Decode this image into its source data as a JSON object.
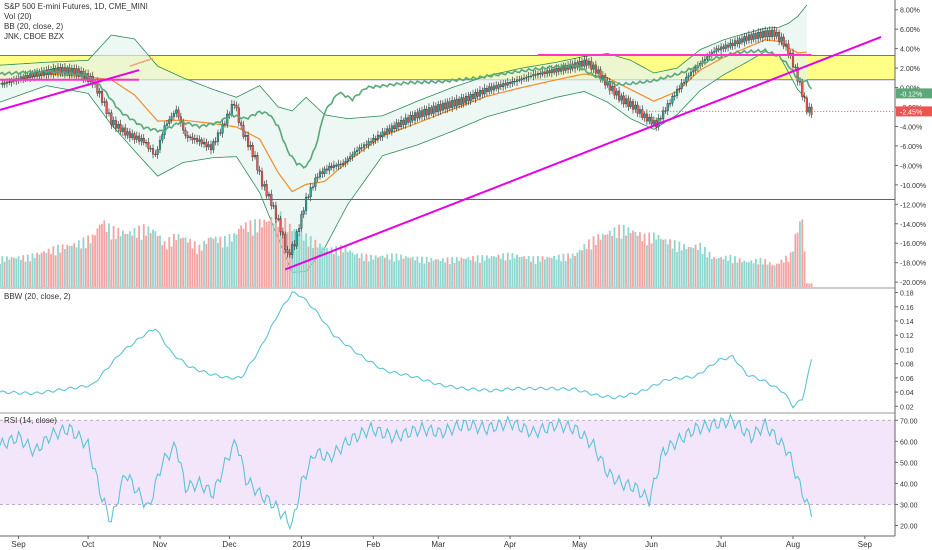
{
  "legend": {
    "main_title": "S&P 500 E-mini Futures, 1D, CME_MINI",
    "vol": "Vol (20)",
    "bb": "BB (20, close, 2)",
    "jnk": "JNK, CBOE BZX",
    "bbw": "BBW (20, close, 2)",
    "rsi": "RSI (14, close)"
  },
  "colors": {
    "up": "#26a69a",
    "down": "#ef5350",
    "vol_up": "#8fd6cf",
    "vol_down": "#f4a3a3",
    "bb_band": "#2e8b57",
    "bb_fill": "#e6f4ee",
    "basis": "#f28c28",
    "jnk": "#5aa77a",
    "bbw": "#5cc3d6",
    "rsi": "#5cc3d6",
    "rsi_fill": "#f3e6fb",
    "highlight": "#ffff66",
    "trend": "#e600e6",
    "support": "#3366dd",
    "red_dotted": "#e05050",
    "resist": "#ff33cc"
  },
  "chart_data": [
    {
      "panel": "price",
      "type": "candlestick",
      "y_unit": "%",
      "ylim": [
        -20.5,
        9
      ],
      "y_ticks": [
        "8.00%",
        "6.00%",
        "4.00%",
        "2.00%",
        "0.00%",
        "-2.00%",
        "-4.00%",
        "-6.00%",
        "-8.00%",
        "-10.00%",
        "-12.00%",
        "-14.00%",
        "-16.00%",
        "-18.00%",
        "-20.00%"
      ],
      "y_tick_values": [
        8,
        6,
        4,
        2,
        0,
        -2,
        -4,
        -6,
        -8,
        -10,
        -12,
        -14,
        -16,
        -18,
        -20
      ],
      "x_ticks": [
        "Sep",
        "Oct",
        "Nov",
        "Dec",
        "2019",
        "Feb",
        "Mar",
        "Apr",
        "May",
        "Jun",
        "Jul",
        "Aug",
        "Sep"
      ],
      "x_tick_days": [
        8,
        38,
        69,
        99,
        130,
        161,
        189,
        220,
        250,
        281,
        311,
        342,
        373
      ],
      "last_day": 350,
      "close_path": [
        [
          0,
          0.3
        ],
        [
          12,
          1.2
        ],
        [
          25,
          1.8
        ],
        [
          33,
          1.6
        ],
        [
          40,
          0.7
        ],
        [
          44,
          -1.2
        ],
        [
          48,
          -3.5
        ],
        [
          55,
          -4.8
        ],
        [
          62,
          -5.5
        ],
        [
          67,
          -7.0
        ],
        [
          71,
          -4.0
        ],
        [
          76,
          -2.3
        ],
        [
          80,
          -5.0
        ],
        [
          86,
          -5.5
        ],
        [
          91,
          -6.2
        ],
        [
          96,
          -4.0
        ],
        [
          101,
          -1.5
        ],
        [
          104,
          -4.2
        ],
        [
          110,
          -7.3
        ],
        [
          113,
          -9.8
        ],
        [
          117,
          -11.8
        ],
        [
          121,
          -14.5
        ],
        [
          124,
          -17.3
        ],
        [
          127,
          -16.0
        ],
        [
          132,
          -11.5
        ],
        [
          137,
          -9.0
        ],
        [
          142,
          -8.2
        ],
        [
          148,
          -7.8
        ],
        [
          154,
          -6.4
        ],
        [
          160,
          -5.5
        ],
        [
          170,
          -4.0
        ],
        [
          180,
          -2.8
        ],
        [
          190,
          -2.0
        ],
        [
          200,
          -1.3
        ],
        [
          210,
          -0.2
        ],
        [
          220,
          0.5
        ],
        [
          230,
          1.3
        ],
        [
          240,
          1.8
        ],
        [
          248,
          2.3
        ],
        [
          253,
          2.6
        ],
        [
          257,
          1.8
        ],
        [
          262,
          0.3
        ],
        [
          268,
          -1.2
        ],
        [
          273,
          -1.9
        ],
        [
          278,
          -3.0
        ],
        [
          283,
          -3.8
        ],
        [
          287,
          -2.2
        ],
        [
          292,
          -0.3
        ],
        [
          297,
          1.3
        ],
        [
          302,
          2.5
        ],
        [
          308,
          3.8
        ],
        [
          315,
          4.4
        ],
        [
          322,
          5.1
        ],
        [
          329,
          5.5
        ],
        [
          334,
          5.6
        ],
        [
          338,
          4.6
        ],
        [
          341,
          3.2
        ],
        [
          344,
          1.0
        ],
        [
          346,
          -0.6
        ],
        [
          348,
          -2.2
        ],
        [
          350,
          -2.45
        ]
      ],
      "bands": [
        [
          0,
          2.3,
          -1.5
        ],
        [
          20,
          2.6,
          0.2
        ],
        [
          38,
          2.8,
          -0.6
        ],
        [
          48,
          5.4,
          -3.8
        ],
        [
          58,
          5.0,
          -6.5
        ],
        [
          68,
          2.2,
          -9.1
        ],
        [
          79,
          1.0,
          -7.7
        ],
        [
          92,
          -0.2,
          -7.2
        ],
        [
          102,
          -1.0,
          -7.1
        ],
        [
          112,
          0.2,
          -10.8
        ],
        [
          120,
          -2.0,
          -15.5
        ],
        [
          126,
          -2.4,
          -19.0
        ],
        [
          132,
          -1.0,
          -18.9
        ],
        [
          140,
          -2.8,
          -16.5
        ],
        [
          150,
          -3.2,
          -12.0
        ],
        [
          165,
          -2.9,
          -7.0
        ],
        [
          180,
          -1.4,
          -5.9
        ],
        [
          195,
          0.0,
          -4.5
        ],
        [
          210,
          1.2,
          -3.0
        ],
        [
          225,
          2.0,
          -2.0
        ],
        [
          240,
          2.6,
          -1.0
        ],
        [
          252,
          3.2,
          -0.4
        ],
        [
          262,
          3.5,
          -1.5
        ],
        [
          272,
          2.8,
          -3.2
        ],
        [
          282,
          1.5,
          -4.3
        ],
        [
          292,
          2.0,
          -2.8
        ],
        [
          302,
          3.9,
          -0.3
        ],
        [
          312,
          4.9,
          1.3
        ],
        [
          322,
          5.6,
          2.6
        ],
        [
          330,
          6.1,
          3.7
        ],
        [
          336,
          6.2,
          3.3
        ],
        [
          340,
          6.6,
          1.6
        ],
        [
          344,
          7.3,
          -0.2
        ],
        [
          348,
          8.5,
          -1.2
        ]
      ],
      "jnk_path": [
        [
          0,
          1.4
        ],
        [
          20,
          1.7
        ],
        [
          38,
          1.2
        ],
        [
          44,
          0.0
        ],
        [
          52,
          -2.5
        ],
        [
          62,
          -4.1
        ],
        [
          70,
          -4.5
        ],
        [
          78,
          -3.5
        ],
        [
          86,
          -4.0
        ],
        [
          94,
          -3.6
        ],
        [
          100,
          -2.8
        ],
        [
          106,
          -3.2
        ],
        [
          112,
          -2.5
        ],
        [
          116,
          -2.7
        ],
        [
          120,
          -4.0
        ],
        [
          124,
          -6.5
        ],
        [
          128,
          -7.8
        ],
        [
          132,
          -8.2
        ],
        [
          136,
          -6.2
        ],
        [
          140,
          -2.5
        ],
        [
          146,
          -0.5
        ],
        [
          152,
          -1.2
        ],
        [
          158,
          0.0
        ],
        [
          166,
          0.2
        ],
        [
          176,
          0.5
        ],
        [
          190,
          0.6
        ],
        [
          206,
          1.0
        ],
        [
          222,
          1.6
        ],
        [
          238,
          2.1
        ],
        [
          248,
          2.3
        ],
        [
          258,
          1.0
        ],
        [
          266,
          0.3
        ],
        [
          272,
          0.4
        ],
        [
          282,
          0.7
        ],
        [
          294,
          1.5
        ],
        [
          308,
          3.0
        ],
        [
          318,
          3.6
        ],
        [
          330,
          3.8
        ],
        [
          336,
          3.2
        ],
        [
          340,
          2.3
        ],
        [
          344,
          0.9
        ],
        [
          348,
          0.6
        ],
        [
          350,
          -0.12
        ]
      ],
      "jnk_last": "-0.12%",
      "last_label": "-2.45%",
      "volume_max": 100,
      "volume": [
        [
          0,
          40,
          1
        ],
        [
          12,
          42,
          1
        ],
        [
          25,
          55,
          0
        ],
        [
          33,
          60,
          1
        ],
        [
          40,
          70,
          0
        ],
        [
          44,
          92,
          0
        ],
        [
          48,
          80,
          0
        ],
        [
          55,
          75,
          1
        ],
        [
          62,
          82,
          0
        ],
        [
          67,
          78,
          1
        ],
        [
          71,
          60,
          0
        ],
        [
          76,
          72,
          0
        ],
        [
          80,
          68,
          0
        ],
        [
          86,
          55,
          0
        ],
        [
          91,
          70,
          0
        ],
        [
          96,
          65,
          1
        ],
        [
          101,
          72,
          1
        ],
        [
          104,
          85,
          0
        ],
        [
          110,
          88,
          0
        ],
        [
          113,
          90,
          0
        ],
        [
          117,
          95,
          0
        ],
        [
          121,
          98,
          0
        ],
        [
          124,
          86,
          0
        ],
        [
          127,
          80,
          1
        ],
        [
          132,
          70,
          1
        ],
        [
          137,
          60,
          1
        ],
        [
          142,
          52,
          1
        ],
        [
          148,
          55,
          1
        ],
        [
          154,
          45,
          1
        ],
        [
          160,
          42,
          1
        ],
        [
          170,
          44,
          1
        ],
        [
          180,
          40,
          1
        ],
        [
          190,
          38,
          1
        ],
        [
          200,
          40,
          1
        ],
        [
          210,
          42,
          1
        ],
        [
          220,
          45,
          1
        ],
        [
          230,
          40,
          1
        ],
        [
          240,
          42,
          1
        ],
        [
          248,
          45,
          1
        ],
        [
          253,
          60,
          0
        ],
        [
          257,
          68,
          0
        ],
        [
          262,
          75,
          0
        ],
        [
          268,
          82,
          1
        ],
        [
          273,
          78,
          0
        ],
        [
          278,
          70,
          0
        ],
        [
          283,
          72,
          1
        ],
        [
          287,
          65,
          1
        ],
        [
          292,
          60,
          1
        ],
        [
          297,
          55,
          1
        ],
        [
          302,
          58,
          1
        ],
        [
          308,
          40,
          1
        ],
        [
          315,
          42,
          1
        ],
        [
          322,
          35,
          1
        ],
        [
          329,
          38,
          1
        ],
        [
          334,
          30,
          0
        ],
        [
          341,
          45,
          0
        ],
        [
          344,
          82,
          0
        ],
        [
          346,
          96,
          0
        ],
        [
          348,
          5,
          0
        ]
      ],
      "highlight_zone": [
        0.8,
        3.3
      ],
      "resistance_level": 3.3,
      "support_level": -11.5,
      "trend_lines": [
        {
          "from": [
            0,
            -2.3
          ],
          "to": [
            60,
            1.8
          ]
        },
        {
          "from": [
            123,
            -18.7
          ],
          "to": [
            380,
            5.2
          ]
        }
      ]
    },
    {
      "panel": "bbw",
      "type": "line",
      "ylim": [
        0.012,
        0.185
      ],
      "y_ticks": [
        "0.18",
        "0.16",
        "0.14",
        "0.12",
        "0.10",
        "0.08",
        "0.06",
        "0.04",
        "0.02"
      ],
      "y_tick_values": [
        0.18,
        0.16,
        0.14,
        0.12,
        0.1,
        0.08,
        0.06,
        0.04,
        0.02
      ],
      "points": [
        [
          0,
          0.04
        ],
        [
          15,
          0.038
        ],
        [
          30,
          0.045
        ],
        [
          40,
          0.05
        ],
        [
          52,
          0.095
        ],
        [
          62,
          0.12
        ],
        [
          67,
          0.13
        ],
        [
          74,
          0.095
        ],
        [
          82,
          0.075
        ],
        [
          90,
          0.066
        ],
        [
          98,
          0.06
        ],
        [
          104,
          0.06
        ],
        [
          112,
          0.1
        ],
        [
          120,
          0.15
        ],
        [
          126,
          0.18
        ],
        [
          130,
          0.175
        ],
        [
          136,
          0.155
        ],
        [
          144,
          0.12
        ],
        [
          156,
          0.09
        ],
        [
          166,
          0.07
        ],
        [
          178,
          0.062
        ],
        [
          190,
          0.05
        ],
        [
          200,
          0.045
        ],
        [
          212,
          0.042
        ],
        [
          222,
          0.045
        ],
        [
          236,
          0.045
        ],
        [
          248,
          0.044
        ],
        [
          258,
          0.035
        ],
        [
          266,
          0.032
        ],
        [
          276,
          0.04
        ],
        [
          288,
          0.058
        ],
        [
          300,
          0.062
        ],
        [
          310,
          0.085
        ],
        [
          316,
          0.09
        ],
        [
          322,
          0.065
        ],
        [
          330,
          0.055
        ],
        [
          338,
          0.04
        ],
        [
          342,
          0.02
        ],
        [
          346,
          0.03
        ],
        [
          350,
          0.085
        ]
      ]
    },
    {
      "panel": "rsi",
      "type": "line",
      "ylim": [
        15,
        73
      ],
      "band": [
        30,
        70
      ],
      "y_ticks": [
        "70.00",
        "60.00",
        "50.00",
        "40.00",
        "30.00",
        "20.00"
      ],
      "y_tick_values": [
        70,
        60,
        50,
        40,
        30,
        20
      ],
      "points": [
        [
          0,
          58
        ],
        [
          8,
          62
        ],
        [
          15,
          55
        ],
        [
          22,
          63
        ],
        [
          30,
          66
        ],
        [
          38,
          58
        ],
        [
          44,
          33
        ],
        [
          48,
          22
        ],
        [
          54,
          45
        ],
        [
          60,
          35
        ],
        [
          64,
          28
        ],
        [
          70,
          50
        ],
        [
          76,
          58
        ],
        [
          80,
          38
        ],
        [
          86,
          40
        ],
        [
          92,
          35
        ],
        [
          98,
          52
        ],
        [
          102,
          60
        ],
        [
          106,
          42
        ],
        [
          112,
          35
        ],
        [
          118,
          30
        ],
        [
          122,
          25
        ],
        [
          126,
          20
        ],
        [
          130,
          40
        ],
        [
          136,
          55
        ],
        [
          142,
          52
        ],
        [
          150,
          60
        ],
        [
          160,
          66
        ],
        [
          170,
          62
        ],
        [
          182,
          66
        ],
        [
          190,
          64
        ],
        [
          200,
          68
        ],
        [
          210,
          66
        ],
        [
          220,
          69
        ],
        [
          230,
          64
        ],
        [
          240,
          68
        ],
        [
          248,
          66
        ],
        [
          256,
          58
        ],
        [
          262,
          45
        ],
        [
          268,
          40
        ],
        [
          274,
          38
        ],
        [
          280,
          32
        ],
        [
          286,
          55
        ],
        [
          292,
          60
        ],
        [
          300,
          66
        ],
        [
          308,
          68
        ],
        [
          316,
          70
        ],
        [
          324,
          62
        ],
        [
          330,
          68
        ],
        [
          336,
          60
        ],
        [
          340,
          55
        ],
        [
          344,
          42
        ],
        [
          348,
          30
        ],
        [
          350,
          27
        ]
      ]
    }
  ]
}
